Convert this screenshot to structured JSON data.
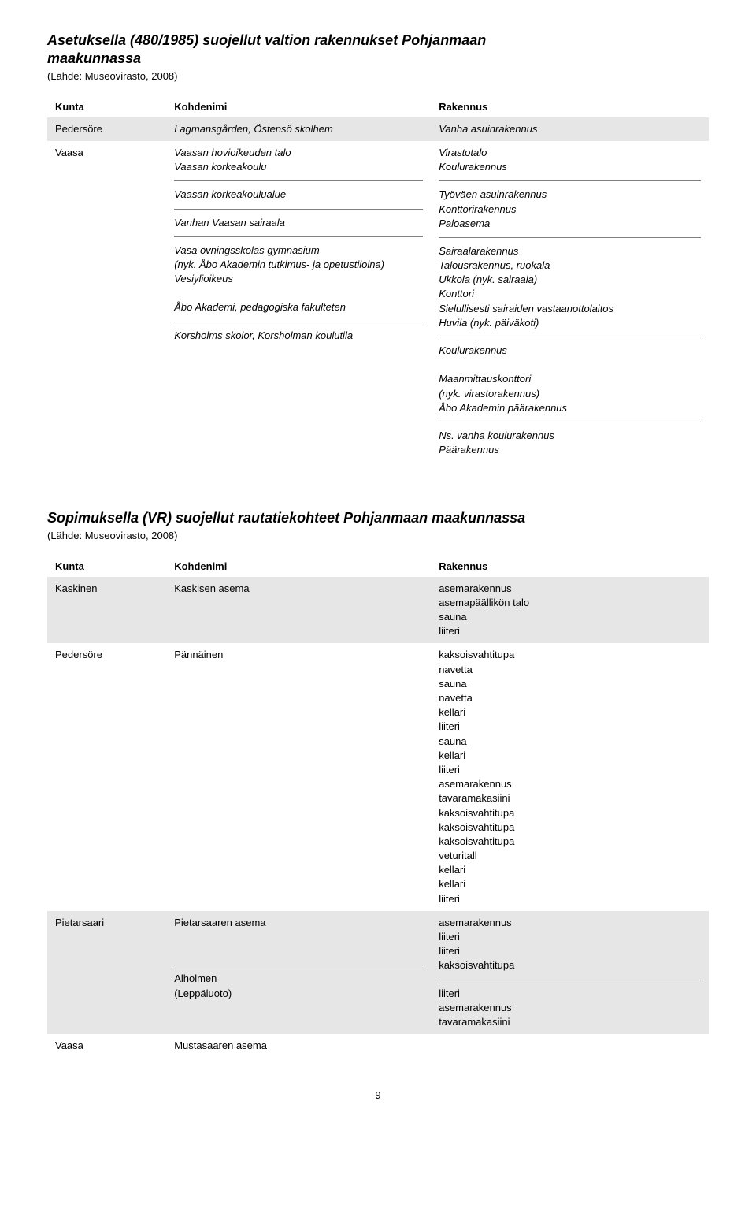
{
  "section1": {
    "heading_line1": "Asetuksella (480/1985) suojellut valtion rakennukset Pohjanmaan",
    "heading_line2": "maakunnassa",
    "source": "(Lähde: Museovirasto, 2008)",
    "columns": [
      "Kunta",
      "Kohdenimi",
      "Rakennus"
    ],
    "rows": [
      {
        "bg": "grey",
        "kunta": "Pedersöre",
        "kohdenimi": "Lagmansgården, Östensö skolhem",
        "rakennus": "Vanha asuinrakennus"
      },
      {
        "bg": "white",
        "kunta": "Vaasa",
        "groups": [
          {
            "kohdenimi": [
              "Vaasan hovioikeuden talo",
              "Vaasan korkeakoulu"
            ],
            "rakennus": [
              "Virastotalo",
              "Koulurakennus"
            ]
          },
          {
            "kohdenimi": [
              "Vaasan korkeakoulualue"
            ],
            "rakennus": [
              "Työväen asuinrakennus",
              "Konttorirakennus",
              "Paloasema"
            ]
          },
          {
            "kohdenimi": [
              "Vanhan Vaasan sairaala"
            ],
            "rakennus": [
              "Sairaalarakennus",
              "Talousrakennus, ruokala",
              "Ukkola (nyk. sairaala)",
              "Konttori",
              "Sielullisesti sairaiden vastaanottolaitos",
              "Huvila (nyk. päiväkoti)"
            ]
          },
          {
            "kohdenimi": [
              "Vasa övningsskolas gymnasium",
              "(nyk. Åbo Akademin tutkimus- ja opetustiloina)",
              "Vesiylioikeus",
              "",
              "Åbo Akademi, pedagogiska fakulteten"
            ],
            "rakennus": [
              "Koulurakennus",
              "",
              "Maanmittauskonttori",
              "(nyk. virastorakennus)",
              "Åbo Akademin päärakennus"
            ]
          },
          {
            "kohdenimi": [
              "Korsholms skolor, Korsholman koulutila"
            ],
            "rakennus": [
              "Ns. vanha koulurakennus",
              "Päärakennus"
            ]
          }
        ]
      }
    ]
  },
  "section2": {
    "heading": "Sopimuksella (VR)  suojellut rautatiekohteet Pohjanmaan maakunnassa",
    "source": "(Lähde: Museovirasto, 2008)",
    "columns": [
      "Kunta",
      "Kohdenimi",
      "Rakennus"
    ],
    "rows": [
      {
        "bg": "grey",
        "kunta": "Kaskinen",
        "kohdenimi": "Kaskisen asema",
        "rakennus": [
          "asemarakennus",
          "asemapäällikön talo",
          "sauna",
          "liiteri"
        ]
      },
      {
        "bg": "white",
        "kunta": " Pedersöre",
        "kohdenimi": "Pännäinen",
        "rakennus": [
          "kaksoisvahtitupa",
          "navetta",
          "sauna",
          "navetta",
          "kellari",
          "liiteri",
          "sauna",
          "kellari",
          "liiteri",
          "asemarakennus",
          "tavaramakasiini",
          "kaksoisvahtitupa",
          "kaksoisvahtitupa",
          "kaksoisvahtitupa",
          "veturitall",
          "kellari",
          "kellari",
          "liiteri"
        ]
      },
      {
        "bg": "grey",
        "kunta": "Pietarsaari",
        "groups": [
          {
            "kohdenimi": [
              "Pietarsaaren asema"
            ],
            "rakennus": [
              "asemarakennus",
              "liiteri",
              "liiteri",
              "kaksoisvahtitupa"
            ]
          },
          {
            "kohdenimi": [
              " Alholmen",
              "(Leppäluoto)"
            ],
            "rakennus": [
              "liiteri",
              "asemarakennus",
              "tavaramakasiini"
            ]
          }
        ]
      },
      {
        "bg": "white",
        "kunta": "Vaasa",
        "kohdenimi": "Mustasaaren asema",
        "rakennus": []
      }
    ]
  },
  "page_number": "9",
  "colors": {
    "grey_bg": "#e6e6e6",
    "white_bg": "#ffffff",
    "divider": "#808080",
    "text": "#000000"
  }
}
